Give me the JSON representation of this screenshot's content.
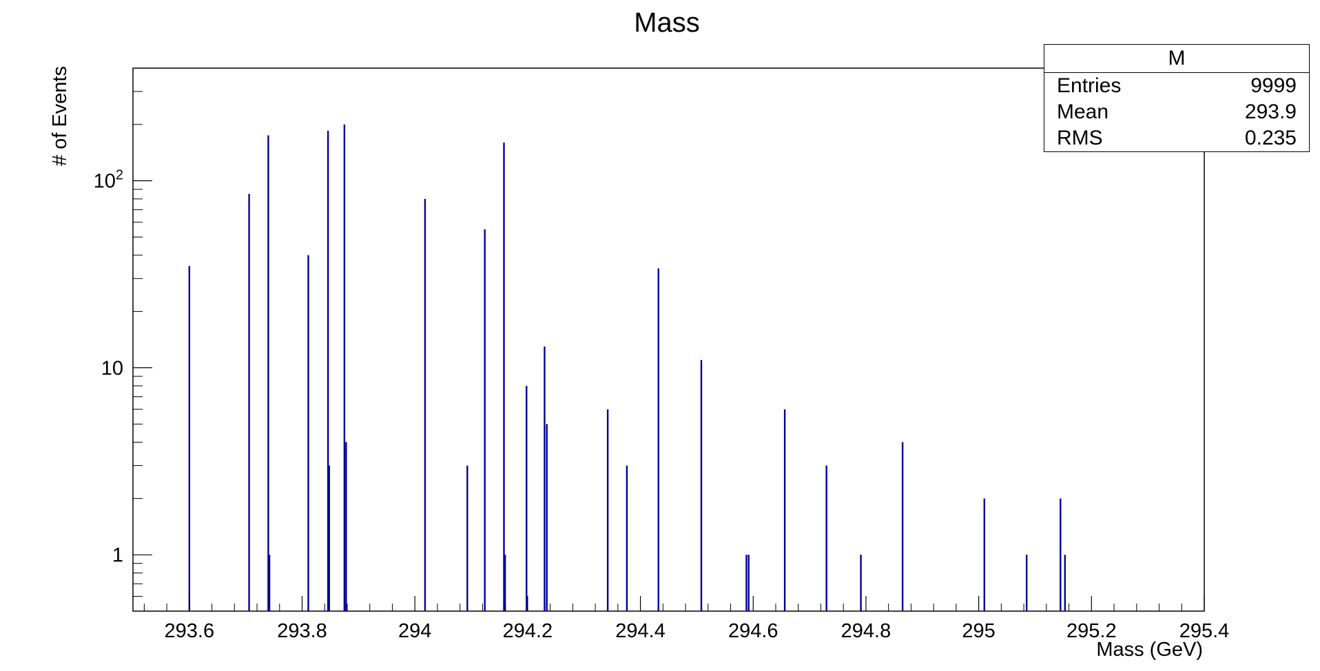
{
  "chart_data": {
    "type": "bar",
    "title": "Mass",
    "xlabel": "Mass (GeV)",
    "ylabel": "# of Events",
    "x_scale": "linear",
    "y_scale": "log",
    "xlim": [
      293.5,
      295.4
    ],
    "ylim": [
      0.5,
      400
    ],
    "x_ticks": [
      "293.6",
      "293.8",
      "294",
      "294.2",
      "294.4",
      "294.6",
      "294.8",
      "295",
      "295.2",
      "295.4"
    ],
    "y_ticks": [
      "1",
      "10",
      "10²"
    ],
    "grid": false,
    "bar_color": "#000099",
    "series": [
      {
        "x": [
          293.6,
          293.706,
          293.74,
          293.742,
          293.811,
          293.846,
          293.848,
          293.875,
          293.878,
          294.018,
          294.093,
          294.124,
          294.158,
          294.16,
          294.198,
          294.23,
          294.234,
          294.342,
          294.376,
          294.432,
          294.508,
          294.588,
          294.592,
          294.656,
          294.73,
          294.791,
          294.865,
          295.01,
          295.085,
          295.145,
          295.153
        ],
        "values": [
          35,
          85,
          175,
          1,
          40,
          185,
          3,
          200,
          4,
          80,
          3,
          55,
          160,
          1,
          8,
          13,
          5,
          6,
          3,
          34,
          11,
          1,
          1,
          6,
          3,
          1,
          4,
          2,
          1,
          2,
          1
        ]
      }
    ],
    "stats_box": {
      "title": "M",
      "rows": [
        {
          "label": "Entries",
          "value": "9999"
        },
        {
          "label": "Mean",
          "value": "293.9"
        },
        {
          "label": "RMS",
          "value": "0.235"
        }
      ]
    }
  }
}
